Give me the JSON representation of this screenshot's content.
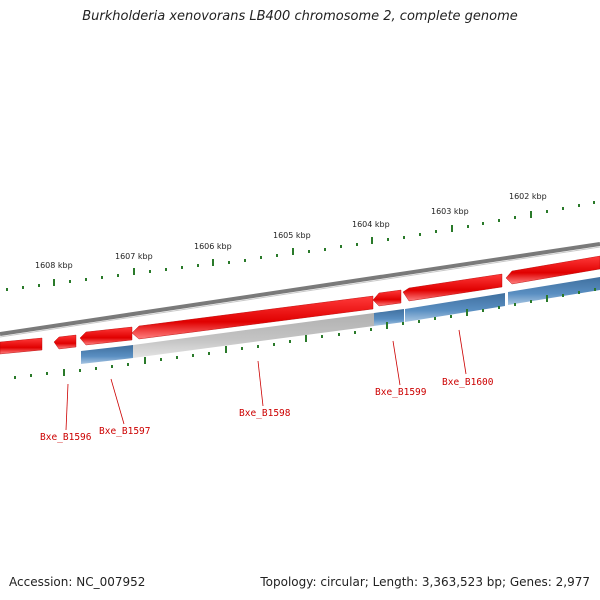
{
  "title": "Burkholderia xenovorans LB400 chromosome 2, complete genome",
  "footer": {
    "accession": "Accession: NC_007952",
    "summary": "Topology: circular; Length: 3,363,523 bp; Genes: 2,977"
  },
  "ruler": {
    "labels": [
      "1608 kbp",
      "1607 kbp",
      "1606 kbp",
      "1605 kbp",
      "1604 kbp",
      "1603 kbp",
      "1602 kbp"
    ]
  },
  "genes": {
    "labels": [
      "Bxe_B1596",
      "Bxe_B1597",
      "Bxe_B1598",
      "Bxe_B1599",
      "Bxe_B1600"
    ]
  },
  "colors": {
    "forward_feature": "#ee1111",
    "reverse_gene": "#4a7fb0",
    "pseudo_gene": "#bdbdbd",
    "backbone": "#7a7a7a",
    "tick": "#2a7a2a",
    "gene_label": "#cc0000"
  }
}
